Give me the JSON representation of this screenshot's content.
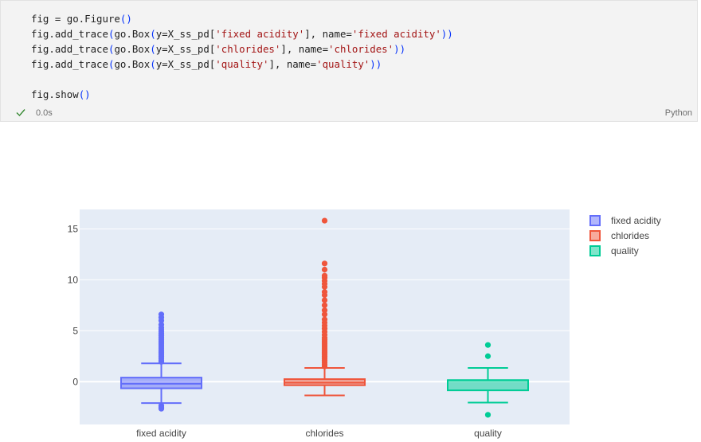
{
  "cell": {
    "code_lines": [
      "fig = go.Figure()",
      "fig.add_trace(go.Box(y=X_ss_pd['fixed acidity'], name='fixed acidity'))",
      "fig.add_trace(go.Box(y=X_ss_pd['chlorides'], name='chlorides'))",
      "fig.add_trace(go.Box(y=X_ss_pd['quality'], name='quality'))",
      "",
      "fig.show()"
    ],
    "status_icon": "check-icon",
    "exec_time": "0.0s",
    "language": "Python",
    "colors": {
      "check": "#388a34",
      "string": "#a31515",
      "paren": "#0431fa"
    }
  },
  "chart_data": {
    "type": "box",
    "categories": [
      "fixed acidity",
      "chlorides",
      "quality"
    ],
    "ylim": [
      -4.2,
      16.9
    ],
    "yticks": [
      0,
      5,
      10,
      15
    ],
    "grid": true,
    "legend_position": "top-right",
    "plot_bg": "#e5ecf6",
    "series": [
      {
        "name": "fixed acidity",
        "color": "#636efa",
        "q1": -0.65,
        "median": -0.2,
        "q3": 0.4,
        "lower_fence": -2.1,
        "upper_fence": 1.8,
        "outliers": [
          -2.35,
          -2.5,
          -2.65,
          1.95,
          2.1,
          2.3,
          2.5,
          2.7,
          2.9,
          3.1,
          3.3,
          3.5,
          3.7,
          3.9,
          4.1,
          4.3,
          4.5,
          4.7,
          4.9,
          5.1,
          5.3,
          5.6,
          6.0,
          6.3,
          6.6
        ]
      },
      {
        "name": "chlorides",
        "color": "#ef553b",
        "q1": -0.35,
        "median": -0.1,
        "q3": 0.25,
        "lower_fence": -1.35,
        "upper_fence": 1.35,
        "outliers": [
          1.5,
          1.7,
          1.9,
          2.1,
          2.3,
          2.5,
          2.7,
          2.9,
          3.1,
          3.3,
          3.5,
          3.7,
          3.9,
          4.1,
          4.3,
          4.6,
          4.9,
          5.2,
          5.5,
          5.8,
          6.1,
          6.6,
          7.0,
          7.5,
          8.0,
          8.5,
          8.8,
          9.3,
          9.6,
          9.9,
          10.2,
          10.4,
          11.0,
          11.6,
          15.8
        ]
      },
      {
        "name": "quality",
        "color": "#00cc96",
        "q1": -0.85,
        "median": 0.15,
        "q3": 0.15,
        "lower_fence": -2.05,
        "upper_fence": 1.35,
        "outliers": [
          -3.25,
          2.5,
          3.6
        ]
      }
    ]
  }
}
